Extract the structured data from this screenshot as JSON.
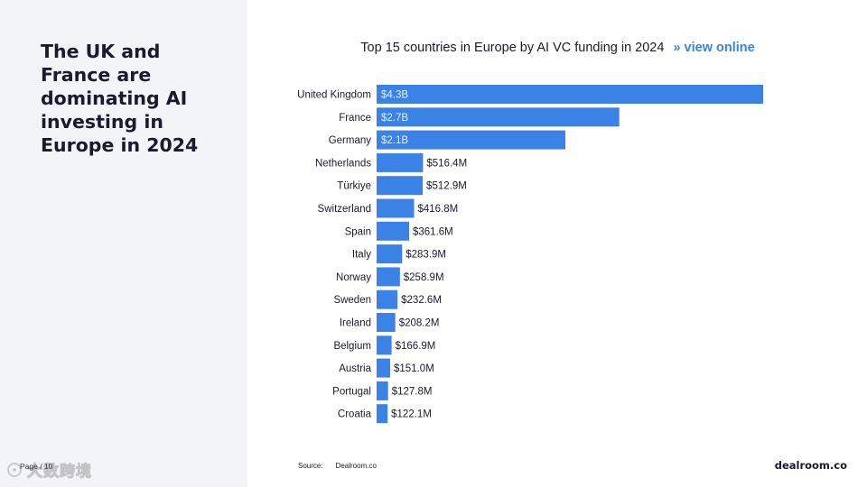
{
  "headline": "The UK and France are dominating AI investing in Europe in 2024",
  "page_label": "Page / 10",
  "watermark_text": "大数跨境",
  "chart_header": {
    "title": "Top 15 countries in Europe by AI VC funding in 2024",
    "link": "» view online"
  },
  "footer": {
    "source_label": "Source:",
    "source_value": "Dealroom.co",
    "brand": "dealroom.co"
  },
  "colors": {
    "bar": "#3b82e6",
    "panel": "#f3f4f8",
    "link": "#3b82e6"
  },
  "chart_data": {
    "type": "bar",
    "orientation": "horizontal",
    "title": "Top 15 countries in Europe by AI VC funding in 2024",
    "categories": [
      "United Kingdom",
      "France",
      "Germany",
      "Netherlands",
      "Türkiye",
      "Switzerland",
      "Spain",
      "Italy",
      "Norway",
      "Sweden",
      "Ireland",
      "Belgium",
      "Austria",
      "Portugal",
      "Croatia"
    ],
    "values": [
      4300,
      2700,
      2100,
      516.4,
      512.9,
      416.8,
      361.6,
      283.9,
      258.9,
      232.6,
      208.2,
      166.9,
      151.0,
      127.8,
      122.1
    ],
    "value_unit": "$M",
    "labels": [
      "$4.3B",
      "$2.7B",
      "$2.1B",
      "$516.4M",
      "$512.9M",
      "$416.8M",
      "$361.6M",
      "$283.9M",
      "$258.9M",
      "$232.6M",
      "$208.2M",
      "$166.9M",
      "$151.0M",
      "$127.8M",
      "$122.1M"
    ],
    "labels_inside_bar": [
      true,
      true,
      true,
      false,
      false,
      false,
      false,
      false,
      false,
      false,
      false,
      false,
      false,
      false,
      false
    ],
    "xlim": [
      0,
      4300
    ],
    "grid": false,
    "legend": "none"
  }
}
